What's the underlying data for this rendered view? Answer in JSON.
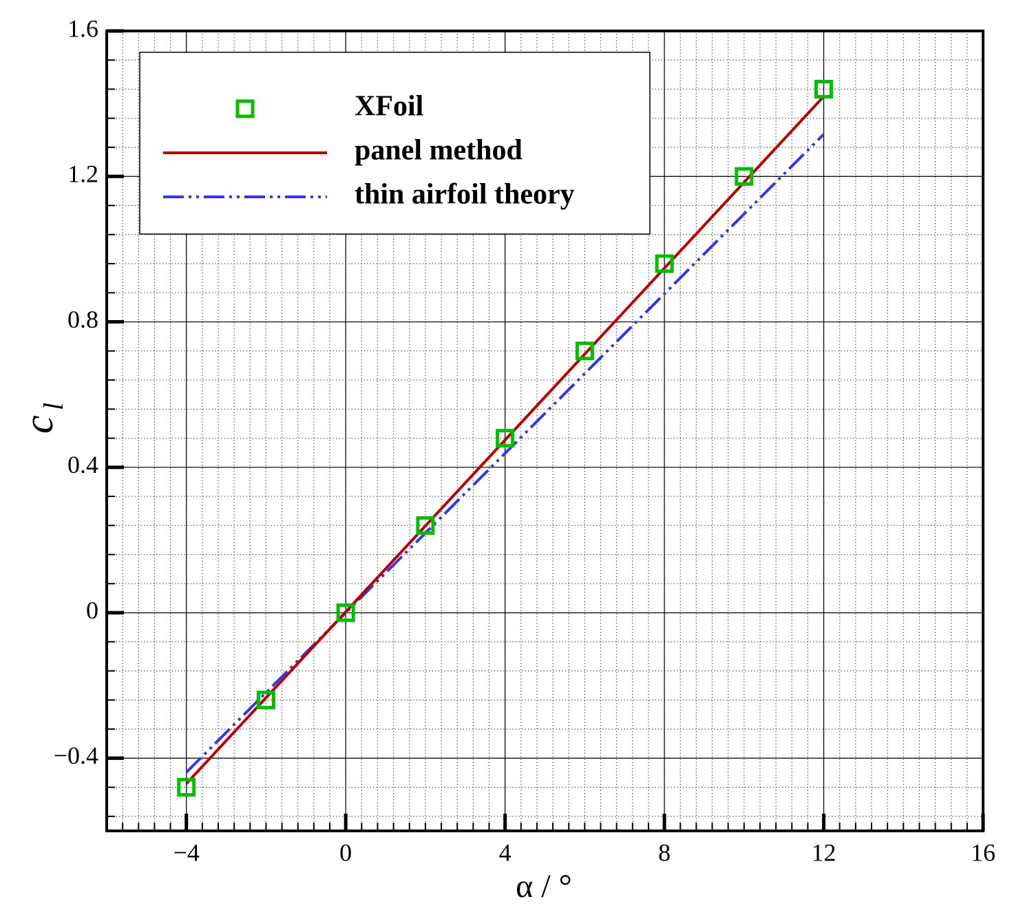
{
  "chart_data": {
    "type": "line",
    "xlabel": "α / °",
    "ylabel": "c",
    "ylabel_subscript": "l",
    "xlim": [
      -6,
      16
    ],
    "ylim": [
      -0.6,
      1.6
    ],
    "xticks": [
      {
        "value": -4,
        "label": "−4"
      },
      0,
      4,
      8,
      12,
      16
    ],
    "yticks": [
      {
        "value": -0.4,
        "label": "−0.4"
      },
      0,
      0.4,
      0.8,
      1.2,
      1.6
    ],
    "grid": true,
    "minor_grid_divisions": [
      10,
      5
    ],
    "legend": "upper left",
    "series": [
      {
        "name": "XFoil",
        "color": "#00c000",
        "mode": "markers",
        "x": [
          -4,
          -2,
          0,
          2,
          4,
          6,
          8,
          10,
          12
        ],
        "values": [
          -0.48,
          -0.24,
          0,
          0.24,
          0.48,
          0.72,
          0.96,
          1.2,
          1.44
        ]
      },
      {
        "name": "panel method",
        "color": "#c00000",
        "mode": "solid",
        "x": [
          -4,
          12
        ],
        "values": [
          -0.47,
          1.42
        ]
      },
      {
        "name": "thin airfoil theory",
        "color": "#3333ff",
        "mode": "dashdotdot",
        "x": [
          -4,
          12
        ],
        "values": [
          -0.439,
          1.316
        ]
      }
    ]
  }
}
